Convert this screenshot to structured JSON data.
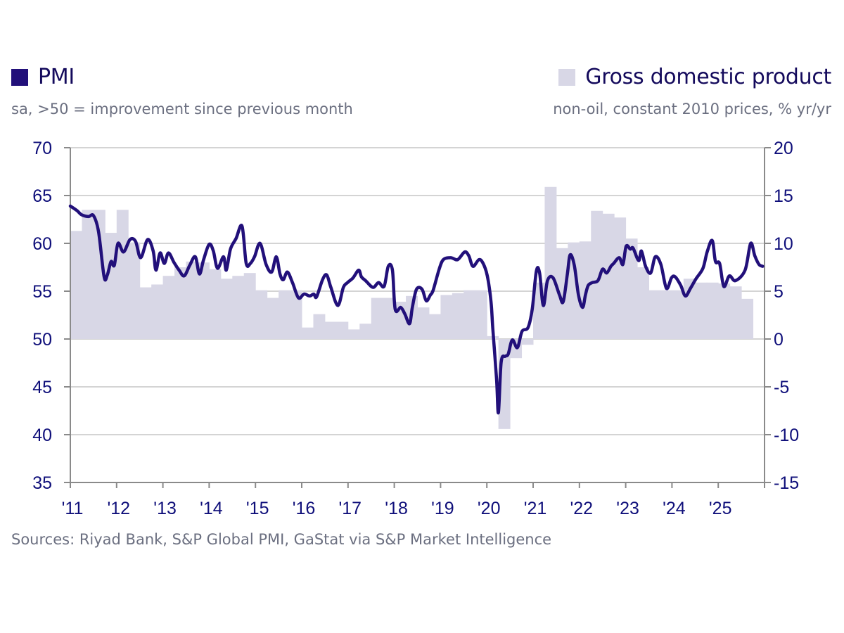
{
  "legend": {
    "pmi": {
      "title": "PMI",
      "subtitle": "sa, >50 = improvement since previous month",
      "color": "#22107a"
    },
    "gdp": {
      "title": "Gross domestic product",
      "subtitle": "non-oil, constant 2010 prices, % yr/yr",
      "color": "#d8d7e6"
    }
  },
  "source": "Sources: Riyad Bank, S&P Global PMI, GaStat via S&P Market Intelligence",
  "chart_data": {
    "type": "line+bar",
    "title": "",
    "x_tick_labels": [
      "'11",
      "'12",
      "'13",
      "'14",
      "'15",
      "'16",
      "'17",
      "'18",
      "'19",
      "'20",
      "'21",
      "'22",
      "'23",
      "'24",
      "'25"
    ],
    "x_range": [
      2011.0,
      2026.0
    ],
    "y_left": {
      "label": "PMI",
      "range": [
        35,
        70
      ],
      "ticks": [
        35,
        40,
        45,
        50,
        55,
        60,
        65,
        70
      ]
    },
    "y_right": {
      "label": "GDP % yr/yr",
      "range": [
        -15,
        20
      ],
      "ticks": [
        -15,
        -10,
        -5,
        0,
        5,
        10,
        15,
        20
      ]
    },
    "grid": true,
    "legend_placement": "top",
    "series": [
      {
        "name": "Gross domestic product",
        "type": "bar",
        "axis": "right",
        "frequency": "quarterly",
        "start": "2011Q1",
        "values": [
          11.3,
          13.5,
          13.5,
          11.1,
          13.5,
          10.1,
          5.4,
          5.7,
          6.6,
          7.5,
          8.1,
          8.0,
          7.3,
          6.3,
          6.6,
          6.9,
          5.1,
          4.3,
          5.1,
          5.1,
          1.2,
          2.6,
          1.8,
          1.8,
          1.0,
          1.6,
          4.3,
          4.3,
          3.9,
          4.5,
          3.3,
          2.6,
          4.6,
          4.8,
          5.1,
          5.1,
          0.3,
          -9.4,
          -2.0,
          -0.6,
          5.9,
          15.9,
          9.5,
          10.1,
          10.2,
          13.4,
          13.1,
          12.7,
          10.5,
          7.5,
          5.1,
          5.1,
          5.1,
          6.3,
          5.9,
          5.9,
          5.8,
          5.5,
          4.2,
          0.0
        ]
      },
      {
        "name": "PMI",
        "type": "line",
        "axis": "left",
        "points": [
          [
            2011.0,
            63.9
          ],
          [
            2011.15,
            63.4
          ],
          [
            2011.24,
            63.0
          ],
          [
            2011.39,
            62.8
          ],
          [
            2011.5,
            62.9
          ],
          [
            2011.61,
            61.2
          ],
          [
            2011.73,
            56.5
          ],
          [
            2011.8,
            56.7
          ],
          [
            2011.88,
            58.1
          ],
          [
            2011.95,
            57.7
          ],
          [
            2012.03,
            60.0
          ],
          [
            2012.15,
            59.1
          ],
          [
            2012.29,
            60.4
          ],
          [
            2012.41,
            60.2
          ],
          [
            2012.52,
            58.5
          ],
          [
            2012.67,
            60.4
          ],
          [
            2012.79,
            59.2
          ],
          [
            2012.85,
            57.2
          ],
          [
            2012.94,
            59.0
          ],
          [
            2013.03,
            57.9
          ],
          [
            2013.12,
            59.0
          ],
          [
            2013.24,
            58.0
          ],
          [
            2013.35,
            57.2
          ],
          [
            2013.46,
            56.6
          ],
          [
            2013.58,
            57.7
          ],
          [
            2013.7,
            58.6
          ],
          [
            2013.79,
            56.8
          ],
          [
            2013.88,
            58.3
          ],
          [
            2014.0,
            59.9
          ],
          [
            2014.09,
            59.2
          ],
          [
            2014.18,
            57.4
          ],
          [
            2014.31,
            58.6
          ],
          [
            2014.37,
            57.2
          ],
          [
            2014.46,
            59.4
          ],
          [
            2014.58,
            60.5
          ],
          [
            2014.71,
            61.8
          ],
          [
            2014.8,
            57.9
          ],
          [
            2014.89,
            57.9
          ],
          [
            2014.98,
            58.6
          ],
          [
            2015.1,
            60.0
          ],
          [
            2015.23,
            57.8
          ],
          [
            2015.35,
            57.0
          ],
          [
            2015.45,
            58.6
          ],
          [
            2015.53,
            56.8
          ],
          [
            2015.6,
            56.2
          ],
          [
            2015.69,
            57.0
          ],
          [
            2015.8,
            55.9
          ],
          [
            2015.93,
            54.3
          ],
          [
            2016.05,
            54.7
          ],
          [
            2016.17,
            54.5
          ],
          [
            2016.26,
            54.7
          ],
          [
            2016.32,
            54.4
          ],
          [
            2016.45,
            56.2
          ],
          [
            2016.54,
            56.7
          ],
          [
            2016.63,
            55.4
          ],
          [
            2016.78,
            53.5
          ],
          [
            2016.9,
            55.4
          ],
          [
            2016.99,
            55.9
          ],
          [
            2017.11,
            56.4
          ],
          [
            2017.23,
            57.2
          ],
          [
            2017.29,
            56.5
          ],
          [
            2017.38,
            56.1
          ],
          [
            2017.54,
            55.4
          ],
          [
            2017.66,
            55.9
          ],
          [
            2017.78,
            55.5
          ],
          [
            2017.87,
            57.6
          ],
          [
            2017.96,
            57.2
          ],
          [
            2018.02,
            53.1
          ],
          [
            2018.14,
            53.3
          ],
          [
            2018.23,
            52.6
          ],
          [
            2018.33,
            51.6
          ],
          [
            2018.39,
            53.3
          ],
          [
            2018.48,
            55.2
          ],
          [
            2018.6,
            55.2
          ],
          [
            2018.69,
            54.0
          ],
          [
            2018.78,
            54.6
          ],
          [
            2018.84,
            55.1
          ],
          [
            2018.97,
            57.3
          ],
          [
            2019.06,
            58.3
          ],
          [
            2019.22,
            58.5
          ],
          [
            2019.37,
            58.3
          ],
          [
            2019.52,
            59.1
          ],
          [
            2019.61,
            58.7
          ],
          [
            2019.7,
            57.6
          ],
          [
            2019.83,
            58.3
          ],
          [
            2019.92,
            57.9
          ],
          [
            2020.01,
            56.6
          ],
          [
            2020.09,
            53.9
          ],
          [
            2020.13,
            51.0
          ],
          [
            2020.21,
            45.8
          ],
          [
            2020.25,
            42.3
          ],
          [
            2020.31,
            47.6
          ],
          [
            2020.4,
            48.2
          ],
          [
            2020.46,
            48.4
          ],
          [
            2020.55,
            49.9
          ],
          [
            2020.66,
            49.1
          ],
          [
            2020.76,
            50.8
          ],
          [
            2020.89,
            51.2
          ],
          [
            2020.98,
            53.1
          ],
          [
            2021.07,
            57.1
          ],
          [
            2021.14,
            56.9
          ],
          [
            2021.22,
            53.5
          ],
          [
            2021.31,
            56.1
          ],
          [
            2021.43,
            56.4
          ],
          [
            2021.57,
            54.6
          ],
          [
            2021.65,
            53.9
          ],
          [
            2021.74,
            56.8
          ],
          [
            2021.8,
            58.8
          ],
          [
            2021.89,
            57.7
          ],
          [
            2021.98,
            54.6
          ],
          [
            2022.07,
            53.3
          ],
          [
            2022.13,
            54.6
          ],
          [
            2022.19,
            55.6
          ],
          [
            2022.28,
            55.9
          ],
          [
            2022.4,
            56.1
          ],
          [
            2022.5,
            57.3
          ],
          [
            2022.59,
            56.9
          ],
          [
            2022.68,
            57.6
          ],
          [
            2022.74,
            57.9
          ],
          [
            2022.86,
            58.5
          ],
          [
            2022.94,
            57.8
          ],
          [
            2023.01,
            59.7
          ],
          [
            2023.1,
            59.4
          ],
          [
            2023.16,
            59.5
          ],
          [
            2023.28,
            58.2
          ],
          [
            2023.34,
            59.2
          ],
          [
            2023.43,
            57.6
          ],
          [
            2023.54,
            56.9
          ],
          [
            2023.64,
            58.6
          ],
          [
            2023.76,
            57.8
          ],
          [
            2023.88,
            55.3
          ],
          [
            2023.99,
            56.4
          ],
          [
            2024.07,
            56.5
          ],
          [
            2024.19,
            55.6
          ],
          [
            2024.29,
            54.5
          ],
          [
            2024.4,
            55.3
          ],
          [
            2024.52,
            56.3
          ],
          [
            2024.67,
            57.4
          ],
          [
            2024.76,
            59.1
          ],
          [
            2024.87,
            60.3
          ],
          [
            2024.94,
            58.1
          ],
          [
            2025.03,
            57.9
          ],
          [
            2025.12,
            55.5
          ],
          [
            2025.24,
            56.6
          ],
          [
            2025.37,
            56.1
          ],
          [
            2025.58,
            57.2
          ],
          [
            2025.7,
            60.0
          ],
          [
            2025.79,
            58.7
          ],
          [
            2025.88,
            57.8
          ],
          [
            2025.96,
            57.6
          ]
        ]
      }
    ]
  }
}
